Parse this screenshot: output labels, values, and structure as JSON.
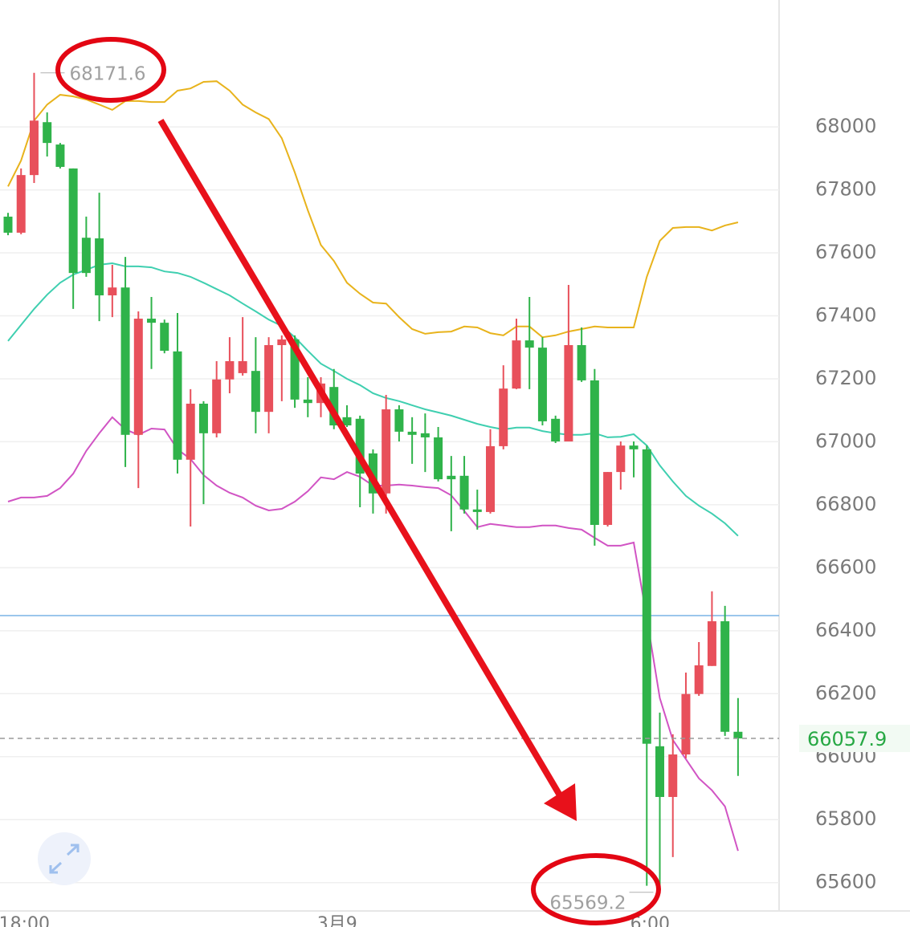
{
  "chart_data": {
    "type": "candlestick",
    "open": [
      67715,
      67664,
      67847,
      68015,
      67944,
      67868,
      67648,
      67646,
      67465,
      67490,
      67022,
      67391,
      67378,
      67287,
      66943,
      67121,
      67027,
      67198,
      67218,
      67225,
      67095,
      67307,
      67325,
      67134,
      67123,
      67174,
      67078,
      67073,
      66963,
      66836,
      67103,
      67032,
      67027,
      67014,
      66892,
      66892,
      66785,
      66777,
      66986,
      67169,
      67322,
      67299,
      67073,
      67001,
      67307,
      67195,
      66736,
      66904,
      66988,
      66976,
      66033,
      65872,
      66007,
      66199,
      66288,
      66430,
      66079
    ],
    "high": [
      67727,
      67868,
      68171.6,
      68046,
      67949,
      67868,
      67715,
      67791,
      67562,
      67587,
      67414,
      67460,
      67388,
      67409,
      67167,
      67129,
      67256,
      67332,
      67396,
      67332,
      67332,
      67338,
      67338,
      67205,
      67205,
      67231,
      67116,
      67083,
      66976,
      67149,
      67116,
      67078,
      67090,
      67047,
      66955,
      66955,
      66848,
      67040,
      67243,
      67391,
      67460,
      67332,
      67083,
      67498,
      67363,
      67231,
      66904,
      67001,
      67001,
      66988,
      66140,
      66071,
      66267,
      66364,
      66525,
      66479,
      66186
    ],
    "low": [
      67656,
      67659,
      67822,
      67906,
      67868,
      67422,
      67524,
      67383,
      67396,
      66920,
      66853,
      67231,
      67281,
      66899,
      66731,
      66802,
      67014,
      67154,
      67210,
      67027,
      67027,
      67129,
      67108,
      67078,
      67078,
      67040,
      67047,
      66792,
      66772,
      66772,
      67001,
      66930,
      66904,
      66874,
      66716,
      66772,
      66721,
      66772,
      66976,
      67167,
      67167,
      67052,
      66996,
      67001,
      67190,
      66670,
      66731,
      66848,
      66887,
      65590,
      65569.2,
      65681,
      65995,
      66193,
      66288,
      66066,
      65939
    ],
    "close": [
      67664,
      67847,
      68020,
      67949,
      67873,
      67536,
      67536,
      67465,
      67490,
      67022,
      67391,
      67378,
      67289,
      66943,
      67121,
      67027,
      67198,
      67256,
      67256,
      67095,
      67307,
      67325,
      67134,
      67123,
      67185,
      67052,
      67052,
      66899,
      66836,
      67103,
      67032,
      67022,
      67014,
      66881,
      66881,
      66785,
      66777,
      66986,
      67169,
      67322,
      67299,
      67065,
      67001,
      67307,
      67195,
      66736,
      66904,
      66988,
      66976,
      66041,
      65872,
      66007,
      66199,
      66290,
      66430,
      66079,
      66057.9
    ],
    "up_color": "#e8505b",
    "down_color": "#2fb34a",
    "bands": [
      {
        "color": "#e8b31c",
        "values": [
          67811,
          67893,
          68020,
          68071,
          68102,
          68097,
          68087,
          68071,
          68054,
          68082,
          68082,
          68079,
          68079,
          68115,
          68122,
          68143,
          68145,
          68115,
          68071,
          68046,
          68025,
          67964,
          67855,
          67735,
          67625,
          67574,
          67505,
          67470,
          67442,
          67439,
          67396,
          67358,
          67343,
          67348,
          67350,
          67366,
          67363,
          67345,
          67338,
          67366,
          67366,
          67332,
          67338,
          67350,
          67358,
          67366,
          67363,
          67363,
          67363,
          67524,
          67638,
          67679,
          67682,
          67682,
          67671,
          67687,
          67697
        ]
      },
      {
        "color": "#3fcfb0",
        "values": [
          67320,
          67371,
          67422,
          67467,
          67505,
          67531,
          67546,
          67562,
          67567,
          67557,
          67557,
          67554,
          67541,
          67536,
          67524,
          67505,
          67485,
          67465,
          67439,
          67414,
          67388,
          67368,
          67332,
          67289,
          67248,
          67225,
          67200,
          67180,
          67154,
          67139,
          67129,
          67116,
          67103,
          67093,
          67083,
          67070,
          67057,
          67047,
          67039,
          67045,
          67045,
          67034,
          67027,
          67022,
          67022,
          67027,
          67014,
          67016,
          67024,
          66988,
          66925,
          66874,
          66828,
          66797,
          66772,
          66741,
          66701
        ]
      },
      {
        "color": "#d154c4",
        "values": [
          66810,
          66823,
          66823,
          66828,
          66853,
          66899,
          66971,
          67027,
          67078,
          67039,
          67022,
          67042,
          67039,
          66976,
          66945,
          66894,
          66861,
          66838,
          66823,
          66797,
          66782,
          66787,
          66810,
          66843,
          66887,
          66881,
          66904,
          66889,
          66861,
          66861,
          66864,
          66861,
          66856,
          66853,
          66830,
          66780,
          66729,
          66739,
          66734,
          66729,
          66729,
          66734,
          66734,
          66726,
          66721,
          66695,
          66670,
          66670,
          66680,
          66441,
          66186,
          66053,
          65992,
          65931,
          65893,
          65842,
          65701
        ]
      }
    ],
    "ylim": [
      65510,
      68403
    ],
    "yticks": [
      65600,
      65800,
      66000,
      66200,
      66400,
      66600,
      66800,
      67000,
      67200,
      67400,
      67600,
      67800,
      68000
    ],
    "grid": true,
    "xticks": [
      {
        "value": 1.25,
        "label": "18:00"
      },
      {
        "value": 25.25,
        "label": "3月9"
      },
      {
        "value": 49.25,
        "label": "6:00"
      }
    ],
    "last_price": 66057.9,
    "max_price": 68171.6,
    "min_price": 65569.2,
    "reference_line": 66448,
    "reference_color": "#7ab4e6"
  }
}
